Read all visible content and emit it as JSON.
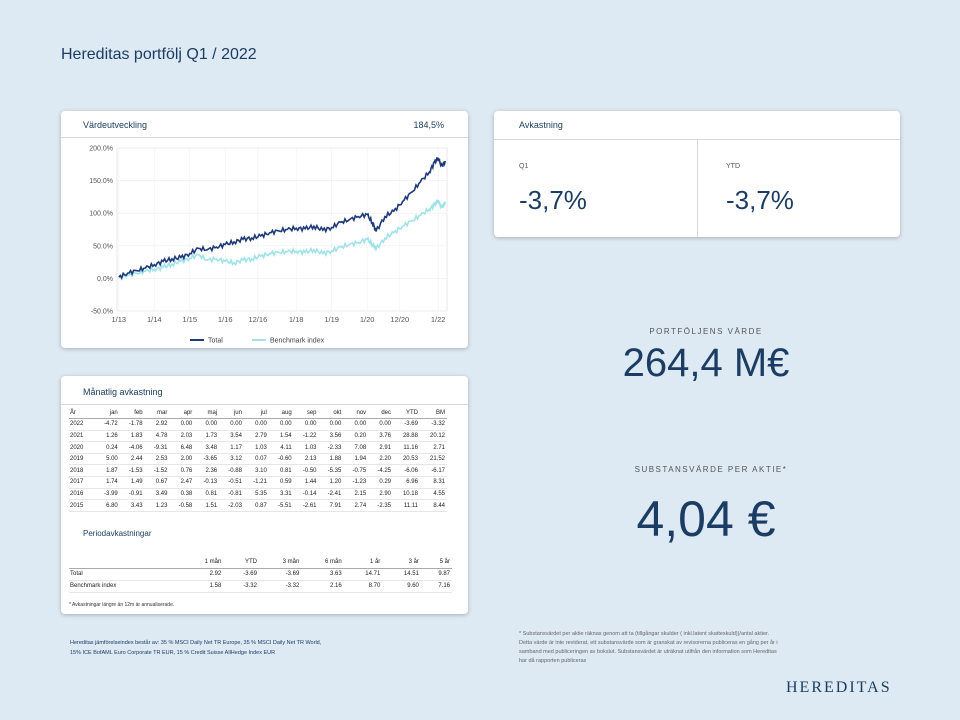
{
  "page": {
    "title": "Hereditas portfölj Q1 / 2022"
  },
  "chart_card": {
    "title": "Värdeutveckling",
    "value": "184,5%"
  },
  "chart_data": {
    "type": "line",
    "ylim": [
      -50,
      200
    ],
    "yticks": [
      "200.0%",
      "150.0%",
      "100.0%",
      "50.0%",
      "0.0%",
      "-50.0%"
    ],
    "ytick_values": [
      200,
      150,
      100,
      50,
      0,
      -50
    ],
    "xticks": [
      "1/13",
      "1/14",
      "1/15",
      "1/16",
      "12/16",
      "1/18",
      "1/19",
      "1/20",
      "12/20",
      "1/22"
    ],
    "xtick_values": [
      2013.0,
      2014.0,
      2015.0,
      2016.0,
      2016.92,
      2018.0,
      2019.0,
      2020.0,
      2020.92,
      2022.0
    ],
    "xlim": [
      2012.95,
      2022.25
    ],
    "legend_position": "bottom",
    "series": [
      {
        "name": "Total",
        "color": "#1f3a7a",
        "x": [
          2013.0,
          2013.25,
          2013.5,
          2013.75,
          2014.0,
          2014.25,
          2014.5,
          2014.75,
          2015.0,
          2015.25,
          2015.5,
          2015.75,
          2016.0,
          2016.25,
          2016.5,
          2016.75,
          2017.0,
          2017.25,
          2017.5,
          2017.75,
          2018.0,
          2018.25,
          2018.5,
          2018.75,
          2019.0,
          2019.25,
          2019.5,
          2019.75,
          2020.0,
          2020.15,
          2020.25,
          2020.5,
          2020.75,
          2021.0,
          2021.25,
          2021.5,
          2021.75,
          2021.9,
          2022.0,
          2022.1,
          2022.2
        ],
        "y": [
          2,
          8,
          12,
          16,
          21,
          26,
          30,
          32,
          38,
          46,
          44,
          48,
          52,
          56,
          60,
          62,
          65,
          70,
          73,
          75,
          77,
          76,
          80,
          74,
          78,
          86,
          90,
          95,
          98,
          85,
          72,
          95,
          103,
          118,
          132,
          148,
          163,
          178,
          185,
          172,
          180
        ]
      },
      {
        "name": "Benchmark index",
        "color": "#9fe3e8",
        "x": [
          2013.0,
          2013.25,
          2013.5,
          2013.75,
          2014.0,
          2014.25,
          2014.5,
          2014.75,
          2015.0,
          2015.25,
          2015.5,
          2015.75,
          2016.0,
          2016.25,
          2016.5,
          2016.75,
          2017.0,
          2017.25,
          2017.5,
          2017.75,
          2018.0,
          2018.25,
          2018.5,
          2018.75,
          2019.0,
          2019.25,
          2019.5,
          2019.75,
          2020.0,
          2020.15,
          2020.25,
          2020.5,
          2020.75,
          2021.0,
          2021.25,
          2021.5,
          2021.75,
          2021.9,
          2022.0,
          2022.1,
          2022.2
        ],
        "y": [
          1,
          5,
          8,
          11,
          14,
          17,
          22,
          26,
          31,
          36,
          28,
          30,
          26,
          24,
          28,
          30,
          34,
          38,
          40,
          41,
          42,
          40,
          44,
          38,
          42,
          48,
          52,
          55,
          60,
          52,
          45,
          62,
          70,
          80,
          88,
          97,
          106,
          113,
          120,
          108,
          118
        ]
      }
    ]
  },
  "returns_card": {
    "title": "Avkastning",
    "q1_label": "Q1",
    "q1_value": "-3,7%",
    "ytd_label": "YTD",
    "ytd_value": "-3,7%"
  },
  "kpis": {
    "portfolio_label": "PORTFÖLJENS VÄRDE",
    "portfolio_value": "264,4 M€",
    "nav_label": "SUBSTANSVÄRDE PER AKTIE*",
    "nav_value": "4,04 €"
  },
  "monthly": {
    "title": "Månatlig avkastning",
    "headers": [
      "År",
      "jan",
      "feb",
      "mar",
      "apr",
      "maj",
      "jun",
      "jul",
      "aug",
      "sep",
      "okt",
      "nov",
      "dec",
      "YTD",
      "BM"
    ],
    "rows": [
      [
        "2022",
        "-4.72",
        "-1.78",
        "2.92",
        "0.00",
        "0.00",
        "0.00",
        "0.00",
        "0.00",
        "0.00",
        "0.00",
        "0.00",
        "0.00",
        "-3.69",
        "-3.32"
      ],
      [
        "2021",
        "1.26",
        "1.83",
        "4.78",
        "2.03",
        "1.73",
        "3.54",
        "2.79",
        "1.54",
        "-1.22",
        "3.56",
        "0.20",
        "3.76",
        "28.88",
        "20.12"
      ],
      [
        "2020",
        "0.24",
        "-4.06",
        "-9.31",
        "6.48",
        "3.48",
        "1.17",
        "1.03",
        "4.11",
        "1.03",
        "-2.33",
        "7.08",
        "2.91",
        "11.16",
        "2.71"
      ],
      [
        "2019",
        "5.00",
        "2.44",
        "2.53",
        "2.00",
        "-3.65",
        "3.12",
        "0.07",
        "-0.60",
        "2.13",
        "1.88",
        "1.94",
        "2.20",
        "20.53",
        "21.52"
      ],
      [
        "2018",
        "1.87",
        "-1.53",
        "-1.52",
        "0.76",
        "2.36",
        "-0.88",
        "3.10",
        "0.81",
        "-0.50",
        "-5.35",
        "-0.75",
        "-4.25",
        "-6.06",
        "-6.17"
      ],
      [
        "2017",
        "1.74",
        "1.49",
        "0.67",
        "2.47",
        "-0.13",
        "-0.51",
        "-1.21",
        "0.59",
        "1.44",
        "1.20",
        "-1.23",
        "0.29",
        "6.96",
        "8.31"
      ],
      [
        "2016",
        "-3.99",
        "-0.91",
        "3.49",
        "0.38",
        "0.81",
        "-0.81",
        "5.35",
        "3.31",
        "-0.14",
        "-2.41",
        "2.15",
        "2.90",
        "10.18",
        "4.55"
      ],
      [
        "2015",
        "6.80",
        "3.43",
        "1.23",
        "-0.58",
        "1.51",
        "-2.03",
        "0.87",
        "-5.51",
        "-2.61",
        "7.91",
        "2.74",
        "-2.35",
        "11.11",
        "8.44"
      ]
    ]
  },
  "period": {
    "title": "Periodavkastningar",
    "headers": [
      "",
      "1 mån",
      "YTD",
      "3 mån",
      "6 mån",
      "1 år",
      "3 år",
      "5 år"
    ],
    "rows": [
      [
        "Total",
        "2.92",
        "-3.69",
        "-3.69",
        "3.63",
        "14.71",
        "14.51",
        "9.87"
      ],
      [
        "Benchmark index",
        "1.58",
        "-3.32",
        "-3.32",
        "2.16",
        "8.70",
        "9.60",
        "7.16"
      ]
    ],
    "note": "* Avkastningar längre än 12m är annualiserade."
  },
  "notes": {
    "benchmark_line1": "Hereditas jämförelseindex består av: 35 % MSCI Daily Net TR Europe, 35 % MSCI Daily Net TR World,",
    "benchmark_line2": "15% ICE BofAML Euro Corporate TR EUR, 15 % Credit Suisse AllHedge Index EUR",
    "nav_line1": "* Substansvärdet per aktie räknas genom att ta (tillgångar skulder ( inkl.latent skatteskuld))/antal aktier.",
    "nav_line2": "Detta värde är inte reviderat, ett substansvärde som är granskat av revisorerna publiceras en gång per år i",
    "nav_line3": "samband med publiceringen av bokslut. Substansvärdet är uträknat utifrån den information som Hereditas",
    "nav_line4": "har då rapporten publiceras"
  },
  "logo": "HEREDITAS"
}
